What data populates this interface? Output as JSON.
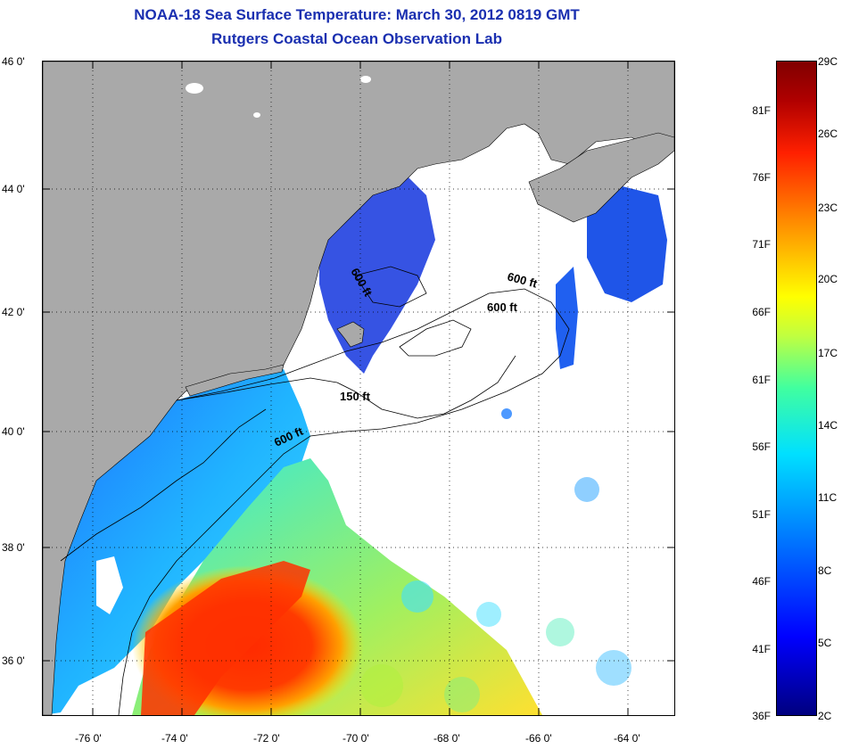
{
  "header": {
    "title": "NOAA-18 Sea Surface Temperature:  March 30, 2012 0819 GMT",
    "subtitle": "Rutgers Coastal Ocean Observation Lab"
  },
  "map": {
    "lat_labels": [
      "46 0'",
      "44 0'",
      "42 0'",
      "40 0'",
      "38 0'",
      "36 0'"
    ],
    "lon_labels": [
      "-76 0'",
      "-74 0'",
      "-72 0'",
      "-70 0'",
      "-68 0'",
      "-66 0'",
      "-64 0'"
    ],
    "contour_labels": [
      "600 ft",
      "600 ft",
      "600 ft",
      "150 ft",
      "600 ft"
    ],
    "colors": {
      "land": "#a9a9a9",
      "cloud": "#ffffff",
      "border": "#000000"
    }
  },
  "colorbar": {
    "fahrenheit": [
      "81F",
      "76F",
      "71F",
      "66F",
      "61F",
      "56F",
      "51F",
      "46F",
      "41F",
      "36F"
    ],
    "celsius": [
      "29C",
      "26C",
      "23C",
      "20C",
      "17C",
      "14C",
      "11C",
      "8C",
      "5C",
      "2C"
    ],
    "colors": [
      "#00007f",
      "#0000ff",
      "#00e0ff",
      "#ffff00",
      "#ff2000",
      "#800000"
    ]
  }
}
